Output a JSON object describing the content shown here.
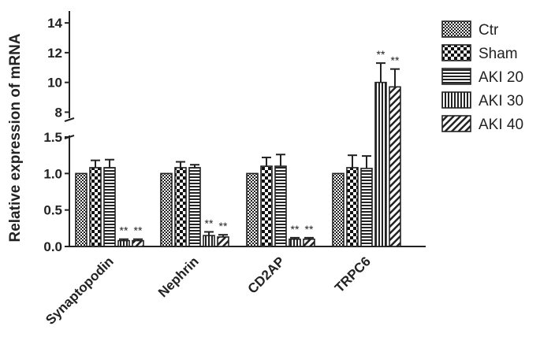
{
  "chart_data": {
    "type": "bar",
    "ylabel": "Relative expression of mRNA",
    "categories": [
      "Synaptopodin",
      "Nephrin",
      "CD2AP",
      "TRPC6"
    ],
    "series": [
      {
        "name": "Ctr",
        "pattern": "checker-fine",
        "values": [
          1.0,
          1.0,
          1.0,
          1.0
        ],
        "errors": [
          0,
          0,
          0,
          0
        ]
      },
      {
        "name": "Sham",
        "pattern": "checker-coarse",
        "values": [
          1.08,
          1.08,
          1.1,
          1.08
        ],
        "errors": [
          0.1,
          0.08,
          0.12,
          0.17
        ]
      },
      {
        "name": "AKI 20",
        "pattern": "horizontal",
        "values": [
          1.08,
          1.08,
          1.1,
          1.07
        ],
        "errors": [
          0.11,
          0.04,
          0.16,
          0.17
        ]
      },
      {
        "name": "AKI 30",
        "pattern": "vertical",
        "values": [
          0.08,
          0.15,
          0.1,
          10.0
        ],
        "errors": [
          0.02,
          0.05,
          0.02,
          1.3
        ]
      },
      {
        "name": "AKI 40",
        "pattern": "diagonal",
        "values": [
          0.08,
          0.13,
          0.1,
          9.7
        ],
        "errors": [
          0.02,
          0.03,
          0.02,
          1.2
        ]
      }
    ],
    "annotations": [
      {
        "category": "Synaptopodin",
        "series": "AKI 30",
        "text": "**"
      },
      {
        "category": "Synaptopodin",
        "series": "AKI 40",
        "text": "**"
      },
      {
        "category": "Nephrin",
        "series": "AKI 30",
        "text": "**"
      },
      {
        "category": "Nephrin",
        "series": "AKI 40",
        "text": "**"
      },
      {
        "category": "CD2AP",
        "series": "AKI 30",
        "text": "**"
      },
      {
        "category": "CD2AP",
        "series": "AKI 40",
        "text": "**"
      },
      {
        "category": "TRPC6",
        "series": "AKI 30",
        "text": "**"
      },
      {
        "category": "TRPC6",
        "series": "AKI 40",
        "text": "**"
      }
    ],
    "y_axis_lower": {
      "range": [
        0,
        1.5
      ],
      "ticks": [
        "0.0",
        "0.5",
        "1.0",
        "1.5"
      ]
    },
    "y_axis_upper": {
      "range": [
        7.6,
        14.8
      ],
      "ticks": [
        "8",
        "10",
        "12",
        "14"
      ]
    },
    "axis_break": true,
    "grid": false,
    "legend_position": "right"
  }
}
